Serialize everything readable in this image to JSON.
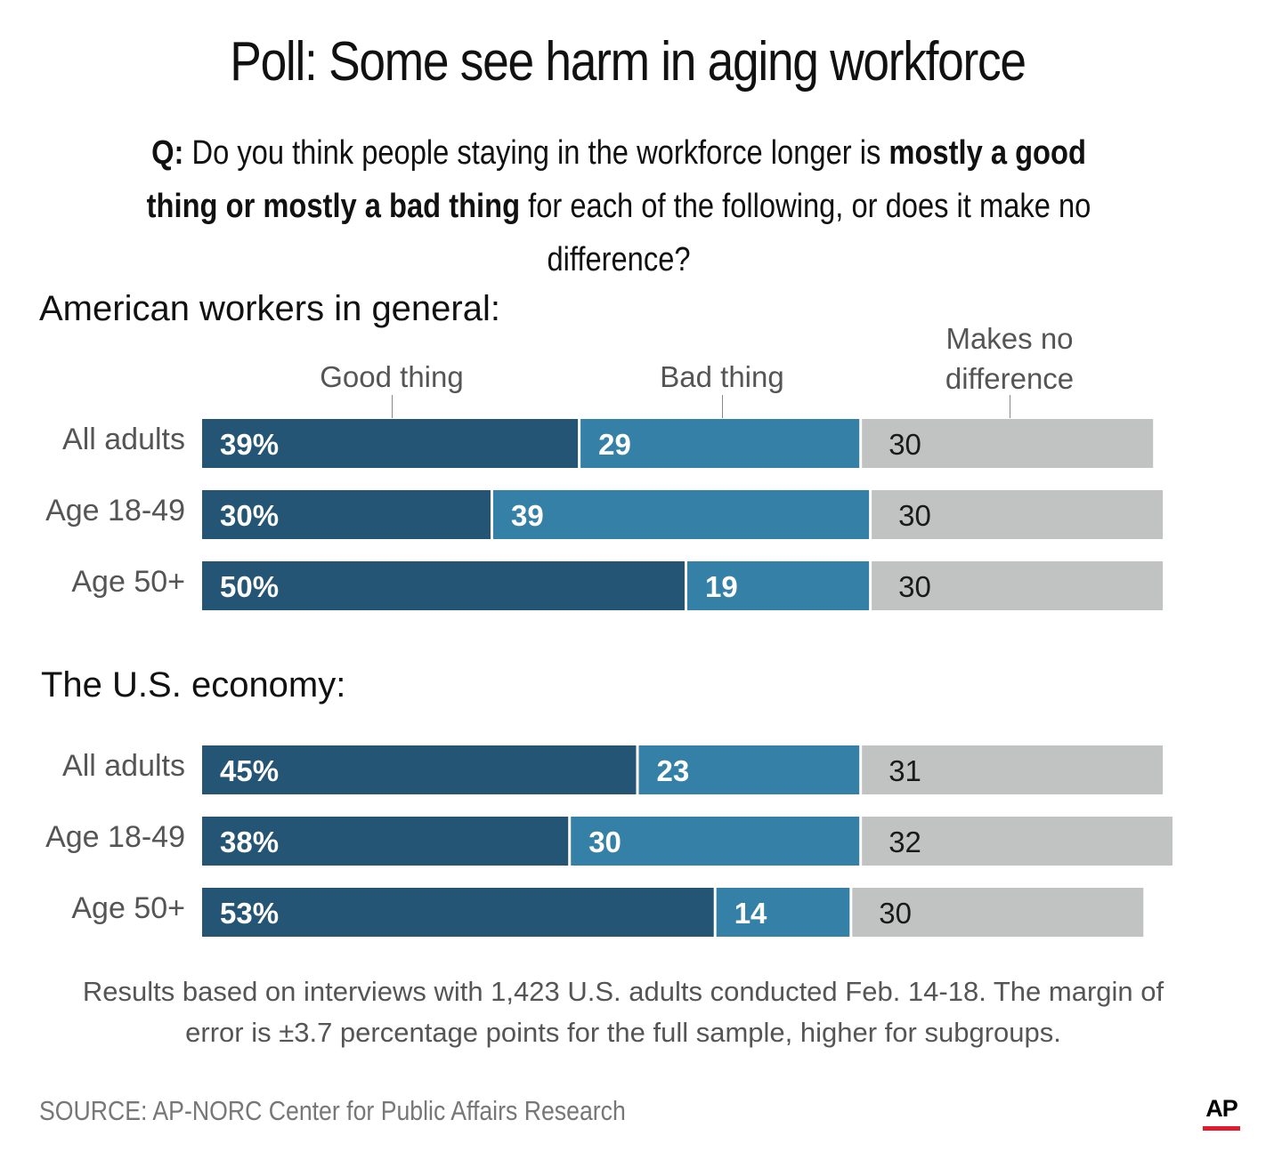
{
  "title": "Poll: Some see harm in aging workforce",
  "question": {
    "prefix": "Q:",
    "text1": " Do you think people staying in the workforce longer is ",
    "bold1": "mostly a good thing or mostly a bad thing",
    "text2": " for each of the following, or does it make no difference?"
  },
  "column_headers": {
    "good": "Good thing",
    "bad": "Bad thing",
    "none_line1": "Makes no",
    "none_line2": "difference"
  },
  "colors": {
    "good": "#245574",
    "bad": "#3480a6",
    "none": "#c1c3c3",
    "label_on_dark": "#ffffff",
    "label_on_light": "#1a1a1a"
  },
  "chart_data": [
    {
      "type": "bar",
      "orientation": "horizontal",
      "stacked": true,
      "title": "American workers in general:",
      "categories": [
        "All adults",
        "Age 18-49",
        "Age 50+"
      ],
      "series": [
        {
          "name": "Good thing",
          "values": [
            39,
            30,
            50
          ]
        },
        {
          "name": "Bad thing",
          "values": [
            29,
            39,
            19
          ]
        },
        {
          "name": "Makes no difference",
          "values": [
            30,
            30,
            30
          ]
        }
      ],
      "value_labels": [
        [
          "39%",
          "29",
          "30"
        ],
        [
          "30%",
          "39",
          "30"
        ],
        [
          "50%",
          "19",
          "30"
        ]
      ]
    },
    {
      "type": "bar",
      "orientation": "horizontal",
      "stacked": true,
      "title": "The U.S. economy:",
      "categories": [
        "All adults",
        "Age 18-49",
        "Age 50+"
      ],
      "series": [
        {
          "name": "Good thing",
          "values": [
            45,
            38,
            53
          ]
        },
        {
          "name": "Bad thing",
          "values": [
            23,
            30,
            14
          ]
        },
        {
          "name": "Makes no difference",
          "values": [
            31,
            32,
            30
          ]
        }
      ],
      "value_labels": [
        [
          "45%",
          "23",
          "31"
        ],
        [
          "38%",
          "30",
          "32"
        ],
        [
          "53%",
          "14",
          "30"
        ]
      ]
    }
  ],
  "note": {
    "line1": "Results based on interviews with 1,423 U.S. adults conducted Feb. 14-18. The margin of",
    "line2": "error is ±3.7 percentage points for the full sample, higher for subgroups."
  },
  "source": "SOURCE: AP-NORC Center for Public Affairs Research",
  "logo": "AP"
}
